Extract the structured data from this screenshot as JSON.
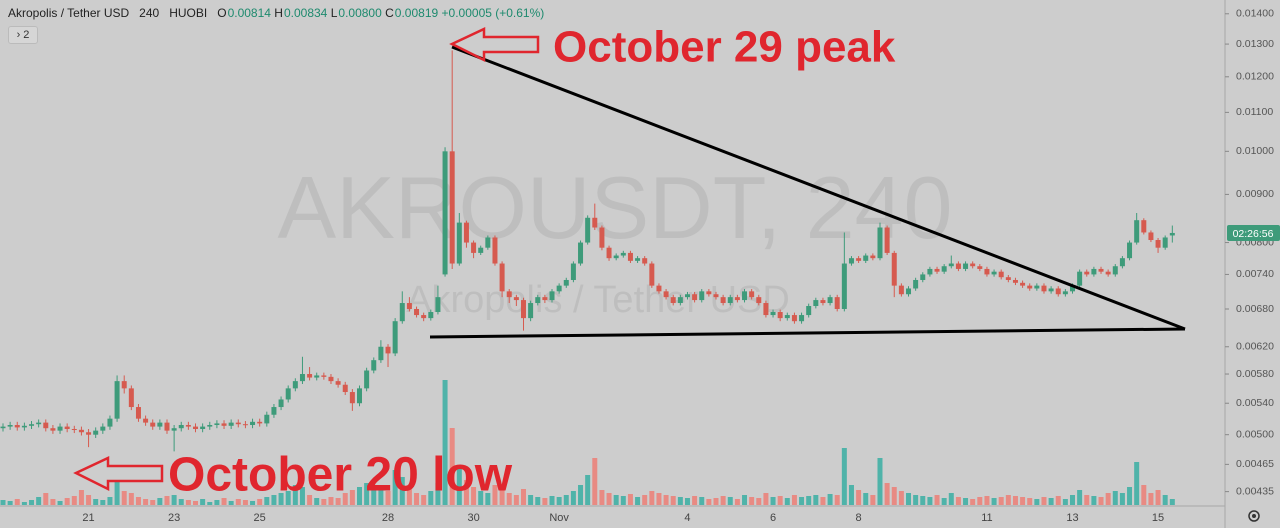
{
  "chart_data": {
    "type": "candlestick",
    "header": {
      "symbol": "Akropolis / Tether USD",
      "interval": "240",
      "exchange": "HUOBI",
      "ohlc": [
        {
          "label": "O",
          "value": "0.00814"
        },
        {
          "label": "H",
          "value": "0.00834"
        },
        {
          "label": "L",
          "value": "0.00800"
        },
        {
          "label": "C",
          "value": "0.00819"
        }
      ],
      "change": "+0.00005 (+0.61%)",
      "indicators": "2"
    },
    "watermark": "AKROUSDT, 240",
    "countdown": "02:26:56",
    "annotations": [
      "October 29 peak",
      "October 20 low"
    ],
    "log_scale": true,
    "grid": false,
    "up_color": "#3e9b7a",
    "down_color": "#d65a4f",
    "volume_up_color": "#4fb3a9",
    "volume_down_color": "#e88a83",
    "ylim": [
      0.00421,
      0.01448
    ],
    "yticks": [
      {
        "value": 0.014,
        "label": "0.01400"
      },
      {
        "value": 0.013,
        "label": "0.01300"
      },
      {
        "value": 0.012,
        "label": "0.01200"
      },
      {
        "value": 0.011,
        "label": "0.01100"
      },
      {
        "value": 0.01,
        "label": "0.01000"
      },
      {
        "value": 0.009,
        "label": "0.00900"
      },
      {
        "value": 0.008,
        "label": "0.00800"
      },
      {
        "value": 0.0074,
        "label": "0.00740"
      },
      {
        "value": 0.0068,
        "label": "0.00680"
      },
      {
        "value": 0.0062,
        "label": "0.00620"
      },
      {
        "value": 0.0058,
        "label": "0.00580"
      },
      {
        "value": 0.0054,
        "label": "0.00540"
      },
      {
        "value": 0.005,
        "label": "0.00500"
      },
      {
        "value": 0.00465,
        "label": "0.00465"
      },
      {
        "value": 0.00435,
        "label": "0.00435"
      }
    ],
    "categories": [
      null,
      null,
      null,
      null,
      null,
      null,
      null,
      null,
      null,
      null,
      null,
      null,
      "21",
      null,
      null,
      null,
      null,
      null,
      null,
      null,
      null,
      null,
      null,
      null,
      "23",
      null,
      null,
      null,
      null,
      null,
      null,
      null,
      null,
      null,
      null,
      null,
      "25",
      null,
      null,
      null,
      null,
      null,
      null,
      null,
      null,
      null,
      null,
      null,
      null,
      null,
      null,
      null,
      null,
      null,
      "28",
      null,
      null,
      null,
      null,
      null,
      null,
      null,
      null,
      null,
      null,
      null,
      "30",
      null,
      null,
      null,
      null,
      null,
      null,
      null,
      null,
      null,
      null,
      null,
      "Nov",
      null,
      null,
      null,
      null,
      null,
      null,
      null,
      null,
      null,
      null,
      null,
      null,
      null,
      null,
      null,
      null,
      null,
      "4",
      null,
      null,
      null,
      null,
      null,
      null,
      null,
      null,
      null,
      null,
      null,
      "6",
      null,
      null,
      null,
      null,
      null,
      null,
      null,
      null,
      null,
      null,
      null,
      "8",
      null,
      null,
      null,
      null,
      null,
      null,
      null,
      null,
      null,
      null,
      null,
      null,
      null,
      null,
      null,
      null,
      null,
      "11",
      null,
      null,
      null,
      null,
      null,
      null,
      null,
      null,
      null,
      null,
      null,
      "13",
      null,
      null,
      null,
      null,
      null,
      null,
      null,
      null,
      null,
      null,
      null,
      "15",
      null,
      null
    ],
    "candles": [
      [
        0.00508,
        0.00514,
        0.00504,
        0.0051
      ],
      [
        0.0051,
        0.00516,
        0.00506,
        0.00512
      ],
      [
        0.00512,
        0.00516,
        0.00505,
        0.00509
      ],
      [
        0.00509,
        0.00515,
        0.00505,
        0.00511
      ],
      [
        0.00511,
        0.00517,
        0.00507,
        0.00513
      ],
      [
        0.00513,
        0.00519,
        0.00509,
        0.00515
      ],
      [
        0.00515,
        0.00519,
        0.00504,
        0.00508
      ],
      [
        0.00508,
        0.00512,
        0.00501,
        0.00505
      ],
      [
        0.00505,
        0.00514,
        0.00501,
        0.0051
      ],
      [
        0.0051,
        0.00514,
        0.00503,
        0.00507
      ],
      [
        0.00507,
        0.00511,
        0.00502,
        0.00506
      ],
      [
        0.00506,
        0.0051,
        0.00499,
        0.00503
      ],
      [
        0.00503,
        0.00507,
        0.00485,
        0.005
      ],
      [
        0.005,
        0.00509,
        0.00496,
        0.00505
      ],
      [
        0.00505,
        0.00514,
        0.00501,
        0.0051
      ],
      [
        0.0051,
        0.00524,
        0.00506,
        0.0052
      ],
      [
        0.0052,
        0.00578,
        0.00516,
        0.0057
      ],
      [
        0.0057,
        0.00578,
        0.00553,
        0.0056
      ],
      [
        0.0056,
        0.00564,
        0.00531,
        0.00535
      ],
      [
        0.00535,
        0.00539,
        0.00516,
        0.0052
      ],
      [
        0.0052,
        0.00524,
        0.00511,
        0.00515
      ],
      [
        0.00515,
        0.00519,
        0.00506,
        0.0051
      ],
      [
        0.0051,
        0.00519,
        0.00506,
        0.00515
      ],
      [
        0.00515,
        0.00519,
        0.00501,
        0.00505
      ],
      [
        0.00505,
        0.00512,
        0.0048,
        0.00508
      ],
      [
        0.00508,
        0.00516,
        0.00504,
        0.00512
      ],
      [
        0.00512,
        0.00516,
        0.00506,
        0.0051
      ],
      [
        0.0051,
        0.00514,
        0.00503,
        0.00507
      ],
      [
        0.00507,
        0.00514,
        0.00503,
        0.0051
      ],
      [
        0.0051,
        0.00516,
        0.00506,
        0.00512
      ],
      [
        0.00512,
        0.00518,
        0.00508,
        0.00514
      ],
      [
        0.00514,
        0.00518,
        0.00507,
        0.00511
      ],
      [
        0.00511,
        0.00519,
        0.00507,
        0.00515
      ],
      [
        0.00515,
        0.00519,
        0.00509,
        0.00513
      ],
      [
        0.00513,
        0.00517,
        0.00508,
        0.00512
      ],
      [
        0.00512,
        0.0052,
        0.00508,
        0.00516
      ],
      [
        0.00516,
        0.0052,
        0.0051,
        0.00514
      ],
      [
        0.00514,
        0.00529,
        0.0051,
        0.00525
      ],
      [
        0.00525,
        0.00539,
        0.00521,
        0.00535
      ],
      [
        0.00535,
        0.00549,
        0.00531,
        0.00545
      ],
      [
        0.00545,
        0.00564,
        0.00541,
        0.0056
      ],
      [
        0.0056,
        0.00574,
        0.00556,
        0.0057
      ],
      [
        0.0057,
        0.00605,
        0.00566,
        0.0058
      ],
      [
        0.0058,
        0.0059,
        0.00571,
        0.00575
      ],
      [
        0.00575,
        0.00582,
        0.00571,
        0.00578
      ],
      [
        0.00578,
        0.00582,
        0.00572,
        0.00576
      ],
      [
        0.00576,
        0.0058,
        0.00566,
        0.0057
      ],
      [
        0.0057,
        0.00574,
        0.00561,
        0.00565
      ],
      [
        0.00565,
        0.00569,
        0.00551,
        0.00555
      ],
      [
        0.00555,
        0.00559,
        0.0053,
        0.0054
      ],
      [
        0.0054,
        0.00564,
        0.00536,
        0.0056
      ],
      [
        0.0056,
        0.00589,
        0.00556,
        0.00585
      ],
      [
        0.00585,
        0.00604,
        0.00581,
        0.006
      ],
      [
        0.006,
        0.0063,
        0.00596,
        0.0062
      ],
      [
        0.0062,
        0.00624,
        0.0059,
        0.0061
      ],
      [
        0.0061,
        0.00665,
        0.00606,
        0.0066
      ],
      [
        0.0066,
        0.0071,
        0.00656,
        0.0069
      ],
      [
        0.0069,
        0.007,
        0.00676,
        0.0068
      ],
      [
        0.0068,
        0.00684,
        0.00666,
        0.0067
      ],
      [
        0.0067,
        0.00674,
        0.0066,
        0.00665
      ],
      [
        0.00665,
        0.00679,
        0.00661,
        0.00675
      ],
      [
        0.00675,
        0.0072,
        0.00671,
        0.007
      ],
      [
        0.0074,
        0.0101,
        0.00736,
        0.01
      ],
      [
        0.01,
        0.0128,
        0.0075,
        0.0076
      ],
      [
        0.0076,
        0.0086,
        0.00756,
        0.0084
      ],
      [
        0.0084,
        0.00844,
        0.0079,
        0.008
      ],
      [
        0.008,
        0.00804,
        0.0077,
        0.0078
      ],
      [
        0.0078,
        0.00794,
        0.00776,
        0.0079
      ],
      [
        0.0079,
        0.00814,
        0.00786,
        0.0081
      ],
      [
        0.0081,
        0.00814,
        0.00756,
        0.0076
      ],
      [
        0.0076,
        0.00764,
        0.007,
        0.0071
      ],
      [
        0.0071,
        0.00714,
        0.0069,
        0.007
      ],
      [
        0.007,
        0.00704,
        0.00685,
        0.00695
      ],
      [
        0.00695,
        0.00699,
        0.00645,
        0.00665
      ],
      [
        0.00665,
        0.00694,
        0.0066,
        0.0069
      ],
      [
        0.0069,
        0.00704,
        0.00686,
        0.007
      ],
      [
        0.007,
        0.00704,
        0.0069,
        0.00695
      ],
      [
        0.00695,
        0.00714,
        0.00691,
        0.0071
      ],
      [
        0.0071,
        0.00724,
        0.00706,
        0.0072
      ],
      [
        0.0072,
        0.00734,
        0.00716,
        0.0073
      ],
      [
        0.0073,
        0.00764,
        0.00726,
        0.0076
      ],
      [
        0.0076,
        0.00804,
        0.00756,
        0.008
      ],
      [
        0.008,
        0.00855,
        0.00796,
        0.0085
      ],
      [
        0.0085,
        0.0088,
        0.00825,
        0.0083
      ],
      [
        0.0083,
        0.00834,
        0.00785,
        0.0079
      ],
      [
        0.0079,
        0.00794,
        0.00765,
        0.0077
      ],
      [
        0.0077,
        0.00779,
        0.00766,
        0.00775
      ],
      [
        0.00775,
        0.00784,
        0.00771,
        0.0078
      ],
      [
        0.0078,
        0.00784,
        0.00761,
        0.00765
      ],
      [
        0.00765,
        0.00774,
        0.00761,
        0.0077
      ],
      [
        0.0077,
        0.00774,
        0.00756,
        0.0076
      ],
      [
        0.0076,
        0.00764,
        0.00716,
        0.0072
      ],
      [
        0.0072,
        0.00724,
        0.00706,
        0.0071
      ],
      [
        0.0071,
        0.00714,
        0.00696,
        0.007
      ],
      [
        0.007,
        0.00704,
        0.00686,
        0.0069
      ],
      [
        0.0069,
        0.00704,
        0.00686,
        0.007
      ],
      [
        0.007,
        0.00709,
        0.00696,
        0.00705
      ],
      [
        0.00705,
        0.00709,
        0.00691,
        0.00695
      ],
      [
        0.00695,
        0.00714,
        0.00691,
        0.0071
      ],
      [
        0.0071,
        0.00714,
        0.00701,
        0.00705
      ],
      [
        0.00705,
        0.00709,
        0.00696,
        0.007
      ],
      [
        0.007,
        0.00704,
        0.00686,
        0.0069
      ],
      [
        0.0069,
        0.00704,
        0.00686,
        0.007
      ],
      [
        0.007,
        0.00704,
        0.00691,
        0.00695
      ],
      [
        0.00695,
        0.00714,
        0.00691,
        0.0071
      ],
      [
        0.0071,
        0.00714,
        0.00696,
        0.007
      ],
      [
        0.007,
        0.00704,
        0.00686,
        0.0069
      ],
      [
        0.0069,
        0.00694,
        0.00666,
        0.0067
      ],
      [
        0.0067,
        0.00679,
        0.00666,
        0.00675
      ],
      [
        0.00675,
        0.00679,
        0.0066,
        0.00665
      ],
      [
        0.00665,
        0.00674,
        0.00661,
        0.0067
      ],
      [
        0.0067,
        0.00674,
        0.00656,
        0.0066
      ],
      [
        0.0066,
        0.00674,
        0.00656,
        0.0067
      ],
      [
        0.0067,
        0.00689,
        0.00666,
        0.00685
      ],
      [
        0.00685,
        0.00699,
        0.00681,
        0.00695
      ],
      [
        0.00695,
        0.00699,
        0.00686,
        0.0069
      ],
      [
        0.0069,
        0.00704,
        0.00686,
        0.007
      ],
      [
        0.007,
        0.00704,
        0.00676,
        0.0068
      ],
      [
        0.0068,
        0.0082,
        0.00676,
        0.0076
      ],
      [
        0.0076,
        0.00774,
        0.00756,
        0.0077
      ],
      [
        0.0077,
        0.00774,
        0.00761,
        0.00765
      ],
      [
        0.00765,
        0.00779,
        0.00761,
        0.00775
      ],
      [
        0.00775,
        0.00779,
        0.00766,
        0.0077
      ],
      [
        0.0077,
        0.0084,
        0.00766,
        0.0083
      ],
      [
        0.0083,
        0.00834,
        0.00776,
        0.0078
      ],
      [
        0.0078,
        0.00784,
        0.007,
        0.0072
      ],
      [
        0.0072,
        0.00724,
        0.00701,
        0.00705
      ],
      [
        0.00705,
        0.00719,
        0.00701,
        0.00715
      ],
      [
        0.00715,
        0.00734,
        0.00711,
        0.0073
      ],
      [
        0.0073,
        0.00744,
        0.00726,
        0.0074
      ],
      [
        0.0074,
        0.00754,
        0.00736,
        0.0075
      ],
      [
        0.0075,
        0.00754,
        0.00741,
        0.00745
      ],
      [
        0.00745,
        0.00759,
        0.00741,
        0.00755
      ],
      [
        0.00755,
        0.00775,
        0.00751,
        0.0076
      ],
      [
        0.0076,
        0.00764,
        0.00746,
        0.0075
      ],
      [
        0.0075,
        0.00764,
        0.00746,
        0.0076
      ],
      [
        0.0076,
        0.00764,
        0.00751,
        0.00755
      ],
      [
        0.00755,
        0.00759,
        0.00746,
        0.0075
      ],
      [
        0.0075,
        0.00754,
        0.00736,
        0.0074
      ],
      [
        0.0074,
        0.00749,
        0.00736,
        0.00745
      ],
      [
        0.00745,
        0.00749,
        0.00731,
        0.00735
      ],
      [
        0.00735,
        0.00739,
        0.00726,
        0.0073
      ],
      [
        0.0073,
        0.00734,
        0.00721,
        0.00725
      ],
      [
        0.00725,
        0.00729,
        0.00716,
        0.0072
      ],
      [
        0.0072,
        0.00724,
        0.00711,
        0.00715
      ],
      [
        0.00715,
        0.00724,
        0.00711,
        0.0072
      ],
      [
        0.0072,
        0.00724,
        0.00706,
        0.0071
      ],
      [
        0.0071,
        0.00719,
        0.00706,
        0.00715
      ],
      [
        0.00715,
        0.00719,
        0.00701,
        0.00705
      ],
      [
        0.00705,
        0.00714,
        0.00701,
        0.0071
      ],
      [
        0.0071,
        0.00724,
        0.00706,
        0.0072
      ],
      [
        0.0072,
        0.00749,
        0.00716,
        0.00745
      ],
      [
        0.00745,
        0.00749,
        0.00736,
        0.0074
      ],
      [
        0.0074,
        0.00754,
        0.00736,
        0.0075
      ],
      [
        0.0075,
        0.00754,
        0.00741,
        0.00745
      ],
      [
        0.00745,
        0.00749,
        0.00736,
        0.0074
      ],
      [
        0.0074,
        0.00759,
        0.00736,
        0.00755
      ],
      [
        0.00755,
        0.00774,
        0.00751,
        0.0077
      ],
      [
        0.0077,
        0.00804,
        0.00766,
        0.008
      ],
      [
        0.008,
        0.0086,
        0.00796,
        0.00845
      ],
      [
        0.00845,
        0.00849,
        0.00816,
        0.0082
      ],
      [
        0.0082,
        0.00824,
        0.00801,
        0.00805
      ],
      [
        0.00805,
        0.00809,
        0.0078,
        0.0079
      ],
      [
        0.0079,
        0.00814,
        0.00786,
        0.0081
      ],
      [
        0.00814,
        0.00834,
        0.008,
        0.00819
      ]
    ],
    "volume": [
      5,
      4,
      6,
      3,
      5,
      8,
      12,
      6,
      4,
      7,
      9,
      15,
      10,
      6,
      5,
      8,
      25,
      14,
      12,
      8,
      6,
      5,
      7,
      9,
      10,
      6,
      5,
      4,
      6,
      3,
      5,
      7,
      4,
      6,
      5,
      4,
      6,
      8,
      10,
      12,
      14,
      20,
      18,
      10,
      7,
      6,
      8,
      7,
      12,
      15,
      18,
      22,
      15,
      20,
      14,
      35,
      28,
      16,
      12,
      10,
      14,
      22,
      125,
      77,
      40,
      25,
      18,
      14,
      12,
      20,
      18,
      12,
      10,
      16,
      10,
      8,
      7,
      9,
      8,
      10,
      14,
      20,
      30,
      47,
      15,
      12,
      10,
      9,
      11,
      8,
      10,
      14,
      12,
      10,
      9,
      8,
      7,
      9,
      8,
      6,
      7,
      9,
      8,
      6,
      10,
      8,
      7,
      12,
      8,
      9,
      7,
      10,
      8,
      9,
      10,
      8,
      11,
      10,
      57,
      20,
      15,
      12,
      10,
      47,
      22,
      18,
      14,
      12,
      10,
      9,
      8,
      10,
      7,
      12,
      8,
      7,
      6,
      8,
      9,
      7,
      8,
      10,
      9,
      8,
      7,
      6,
      8,
      7,
      9,
      6,
      10,
      15,
      10,
      9,
      8,
      12,
      14,
      12,
      18,
      43,
      20,
      12,
      15,
      10,
      6
    ]
  }
}
